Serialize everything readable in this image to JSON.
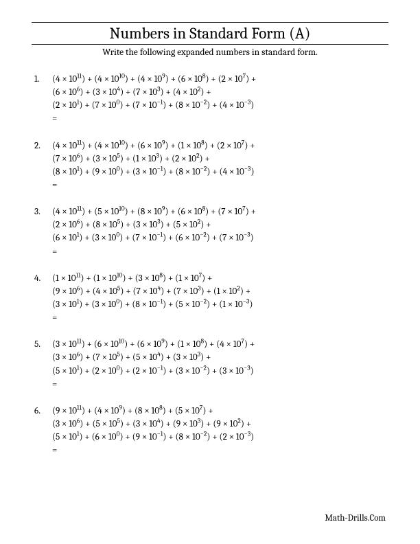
{
  "title": "Numbers in Standard Form (A)",
  "instruction": "Write the following expanded numbers in standard form.",
  "footer": "Math-Drills.Com",
  "problems": [
    {
      "num": "1.",
      "lines": [
        [
          [
            "4",
            "11"
          ],
          [
            "4",
            "10"
          ],
          [
            "4",
            "9"
          ],
          [
            "6",
            "8"
          ],
          [
            "2",
            "7"
          ]
        ],
        [
          [
            "6",
            "6"
          ],
          [
            "3",
            "4"
          ],
          [
            "7",
            "3"
          ],
          [
            "4",
            "2"
          ]
        ],
        [
          [
            "2",
            "1"
          ],
          [
            "7",
            "0"
          ],
          [
            "7",
            "−1"
          ],
          [
            "8",
            "−2"
          ],
          [
            "4",
            "−3"
          ]
        ]
      ]
    },
    {
      "num": "2.",
      "lines": [
        [
          [
            "4",
            "11"
          ],
          [
            "4",
            "10"
          ],
          [
            "6",
            "9"
          ],
          [
            "1",
            "8"
          ],
          [
            "2",
            "7"
          ]
        ],
        [
          [
            "7",
            "6"
          ],
          [
            "3",
            "5"
          ],
          [
            "1",
            "3"
          ],
          [
            "2",
            "2"
          ]
        ],
        [
          [
            "8",
            "1"
          ],
          [
            "9",
            "0"
          ],
          [
            "3",
            "−1"
          ],
          [
            "8",
            "−2"
          ],
          [
            "4",
            "−3"
          ]
        ]
      ]
    },
    {
      "num": "3.",
      "lines": [
        [
          [
            "4",
            "11"
          ],
          [
            "5",
            "10"
          ],
          [
            "8",
            "9"
          ],
          [
            "6",
            "8"
          ],
          [
            "7",
            "7"
          ]
        ],
        [
          [
            "2",
            "6"
          ],
          [
            "8",
            "5"
          ],
          [
            "3",
            "3"
          ],
          [
            "5",
            "2"
          ]
        ],
        [
          [
            "6",
            "1"
          ],
          [
            "3",
            "0"
          ],
          [
            "7",
            "−1"
          ],
          [
            "6",
            "−2"
          ],
          [
            "7",
            "−3"
          ]
        ]
      ]
    },
    {
      "num": "4.",
      "lines": [
        [
          [
            "1",
            "11"
          ],
          [
            "1",
            "10"
          ],
          [
            "3",
            "8"
          ],
          [
            "1",
            "7"
          ]
        ],
        [
          [
            "9",
            "6"
          ],
          [
            "4",
            "5"
          ],
          [
            "7",
            "4"
          ],
          [
            "7",
            "3"
          ],
          [
            "1",
            "2"
          ]
        ],
        [
          [
            "3",
            "1"
          ],
          [
            "3",
            "0"
          ],
          [
            "8",
            "−1"
          ],
          [
            "5",
            "−2"
          ],
          [
            "1",
            "−3"
          ]
        ]
      ]
    },
    {
      "num": "5.",
      "lines": [
        [
          [
            "3",
            "11"
          ],
          [
            "6",
            "10"
          ],
          [
            "6",
            "9"
          ],
          [
            "1",
            "8"
          ],
          [
            "4",
            "7"
          ]
        ],
        [
          [
            "3",
            "6"
          ],
          [
            "7",
            "5"
          ],
          [
            "5",
            "4"
          ],
          [
            "3",
            "3"
          ]
        ],
        [
          [
            "5",
            "1"
          ],
          [
            "2",
            "0"
          ],
          [
            "2",
            "−1"
          ],
          [
            "3",
            "−2"
          ],
          [
            "3",
            "−3"
          ]
        ]
      ]
    },
    {
      "num": "6.",
      "lines": [
        [
          [
            "9",
            "11"
          ],
          [
            "4",
            "9"
          ],
          [
            "8",
            "8"
          ],
          [
            "5",
            "7"
          ]
        ],
        [
          [
            "3",
            "6"
          ],
          [
            "5",
            "5"
          ],
          [
            "3",
            "4"
          ],
          [
            "9",
            "3"
          ],
          [
            "9",
            "2"
          ]
        ],
        [
          [
            "5",
            "1"
          ],
          [
            "6",
            "0"
          ],
          [
            "9",
            "−1"
          ],
          [
            "8",
            "−2"
          ],
          [
            "2",
            "−3"
          ]
        ]
      ]
    }
  ]
}
